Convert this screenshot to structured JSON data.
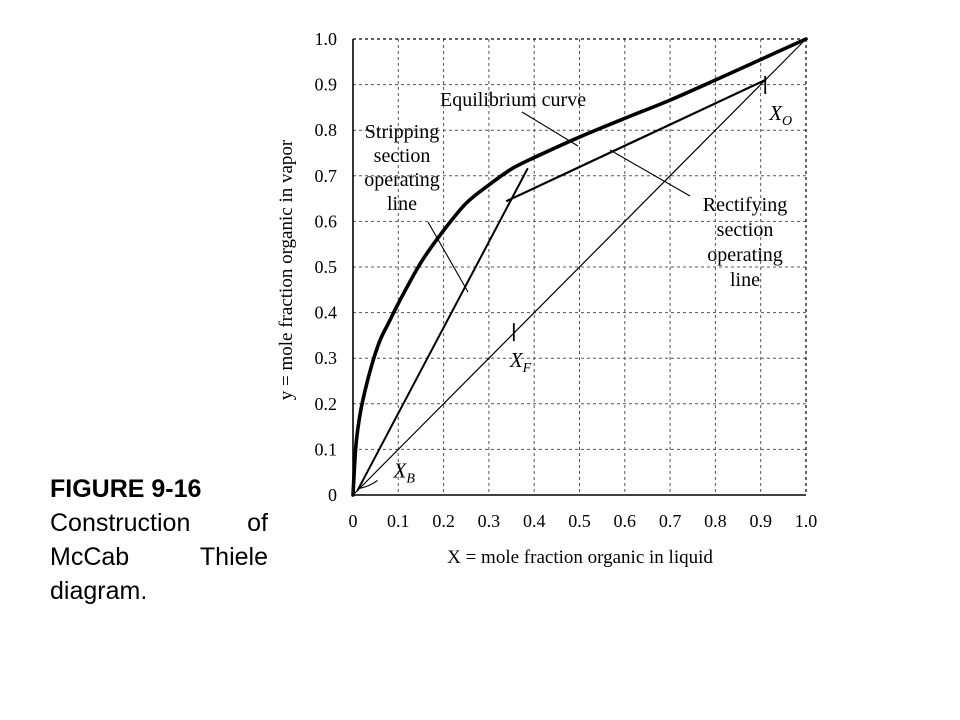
{
  "caption": {
    "figure_number": "FIGURE 9-16",
    "text": "Construction of McCab Thiele diagram."
  },
  "chart_data": {
    "type": "line",
    "title": "",
    "xlabel": "X = mole fraction organic in liquid",
    "ylabel": "y = mole fraction organic in vapor",
    "xlim": [
      0,
      1
    ],
    "ylim": [
      0,
      1
    ],
    "x_ticks": [
      "0",
      "0.1",
      "0.2",
      "0.3",
      "0.4",
      "0.5",
      "0.6",
      "0.7",
      "0.8",
      "0.9",
      "1.0"
    ],
    "y_ticks": [
      "0",
      "0.1",
      "0.2",
      "0.3",
      "0.4",
      "0.5",
      "0.6",
      "0.7",
      "0.8",
      "0.9",
      "1.0"
    ],
    "grid": true,
    "grid_style": "dashed",
    "series": [
      {
        "key": "equilibrium",
        "x": [
          0,
          0.005,
          0.01,
          0.02,
          0.04,
          0.06,
          0.08,
          0.1,
          0.15,
          0.2,
          0.25,
          0.3,
          0.35,
          0.4,
          0.5,
          0.6,
          0.7,
          0.8,
          0.9,
          1.0
        ],
        "y": [
          0,
          0.09,
          0.14,
          0.2,
          0.28,
          0.34,
          0.38,
          0.42,
          0.51,
          0.58,
          0.64,
          0.68,
          0.715,
          0.74,
          0.785,
          0.826,
          0.866,
          0.91,
          0.955,
          1.0
        ]
      },
      {
        "key": "diagonal",
        "x": [
          0,
          1
        ],
        "y": [
          0,
          1
        ]
      },
      {
        "key": "stripping",
        "x": [
          0.01,
          0.385
        ],
        "y": [
          0.01,
          0.715
        ]
      },
      {
        "key": "rectifying",
        "x": [
          0.34,
          0.91
        ],
        "y": [
          0.645,
          0.91
        ]
      }
    ],
    "annotations": [
      {
        "key": "equilibrium",
        "text": "Equilibrium curve"
      },
      {
        "key": "stripping",
        "lines": [
          "Stripping",
          "section",
          "operating",
          "line"
        ]
      },
      {
        "key": "rectifying",
        "lines": [
          "Rectifying",
          "section",
          "operating",
          "line"
        ]
      },
      {
        "key": "xo",
        "text": "X",
        "subscript": "O",
        "x": 0.91
      },
      {
        "key": "xf",
        "text": "X",
        "subscript": "F",
        "x": 0.355
      },
      {
        "key": "xb",
        "text": "X",
        "subscript": "B",
        "x": 0.01
      }
    ]
  }
}
